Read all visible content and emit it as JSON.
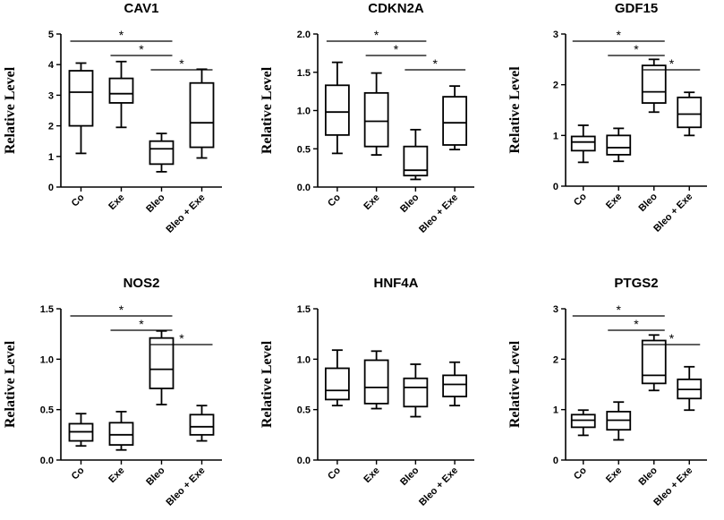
{
  "chart_data": [
    {
      "type": "box",
      "title": "CAV1",
      "ylabel": "Relative Level",
      "ylim": [
        0,
        5
      ],
      "yticks": [
        "0",
        "1",
        "2",
        "3",
        "4",
        "5"
      ],
      "categories": [
        "Co",
        "Exe",
        "Bleo",
        "Bleo + Exe"
      ],
      "boxes": [
        {
          "min": 1.1,
          "q1": 2.0,
          "median": 3.1,
          "q3": 3.8,
          "max": 4.05
        },
        {
          "min": 1.95,
          "q1": 2.75,
          "median": 3.05,
          "q3": 3.55,
          "max": 4.1
        },
        {
          "min": 0.5,
          "q1": 0.75,
          "median": 1.25,
          "q3": 1.5,
          "max": 1.75
        },
        {
          "min": 0.95,
          "q1": 1.3,
          "median": 2.1,
          "q3": 3.4,
          "max": 3.85
        }
      ],
      "significance": [
        {
          "from": 0,
          "to": 2,
          "label": "*"
        },
        {
          "from": 1,
          "to": 2,
          "label": "*"
        },
        {
          "from": 2,
          "to": 3,
          "label": "*"
        }
      ]
    },
    {
      "type": "box",
      "title": "CDKN2A",
      "ylabel": "Relative Level",
      "ylim": [
        0,
        2
      ],
      "yticks": [
        "0.0",
        "0.5",
        "1.0",
        "1.5",
        "2.0"
      ],
      "categories": [
        "Co",
        "Exe",
        "Bleo",
        "Bleo + Exe"
      ],
      "boxes": [
        {
          "min": 0.44,
          "q1": 0.68,
          "median": 0.98,
          "q3": 1.33,
          "max": 1.63
        },
        {
          "min": 0.42,
          "q1": 0.53,
          "median": 0.86,
          "q3": 1.23,
          "max": 1.49
        },
        {
          "min": 0.1,
          "q1": 0.15,
          "median": 0.22,
          "q3": 0.53,
          "max": 0.75
        },
        {
          "min": 0.49,
          "q1": 0.55,
          "median": 0.84,
          "q3": 1.18,
          "max": 1.32
        }
      ],
      "significance": [
        {
          "from": 0,
          "to": 2,
          "label": "*"
        },
        {
          "from": 1,
          "to": 2,
          "label": "*"
        },
        {
          "from": 2,
          "to": 3,
          "label": "*"
        }
      ]
    },
    {
      "type": "box",
      "title": "GDF15",
      "ylabel": "Relative Level",
      "ylim": [
        0,
        3
      ],
      "yticks": [
        "0",
        "1",
        "2",
        "3"
      ],
      "categories": [
        "Co",
        "Exe",
        "Bleo",
        "Bleo + Exe"
      ],
      "boxes": [
        {
          "min": 0.47,
          "q1": 0.7,
          "median": 0.87,
          "q3": 0.98,
          "max": 1.2
        },
        {
          "min": 0.49,
          "q1": 0.62,
          "median": 0.76,
          "q3": 1.0,
          "max": 1.14
        },
        {
          "min": 1.46,
          "q1": 1.64,
          "median": 1.86,
          "q3": 2.38,
          "max": 2.5
        },
        {
          "min": 1.0,
          "q1": 1.16,
          "median": 1.42,
          "q3": 1.75,
          "max": 1.85
        }
      ],
      "significance": [
        {
          "from": 0,
          "to": 2,
          "label": "*"
        },
        {
          "from": 1,
          "to": 2,
          "label": "*"
        },
        {
          "from": 2,
          "to": 3,
          "label": "*"
        }
      ]
    },
    {
      "type": "box",
      "title": "NOS2",
      "ylabel": "Relative Level",
      "ylim": [
        0,
        1.5
      ],
      "yticks": [
        "0.0",
        "0.5",
        "1.0",
        "1.5"
      ],
      "categories": [
        "Co",
        "Exe",
        "Bleo",
        "Bleo + Exe"
      ],
      "boxes": [
        {
          "min": 0.14,
          "q1": 0.19,
          "median": 0.28,
          "q3": 0.36,
          "max": 0.46
        },
        {
          "min": 0.1,
          "q1": 0.15,
          "median": 0.25,
          "q3": 0.37,
          "max": 0.48
        },
        {
          "min": 0.55,
          "q1": 0.71,
          "median": 0.9,
          "q3": 1.21,
          "max": 1.28
        },
        {
          "min": 0.19,
          "q1": 0.25,
          "median": 0.33,
          "q3": 0.45,
          "max": 0.54
        }
      ],
      "significance": [
        {
          "from": 0,
          "to": 2,
          "label": "*"
        },
        {
          "from": 1,
          "to": 2,
          "label": "*"
        },
        {
          "from": 2,
          "to": 3,
          "label": "*"
        }
      ]
    },
    {
      "type": "box",
      "title": "HNF4A",
      "ylabel": "Relative Level",
      "ylim": [
        0,
        1.5
      ],
      "yticks": [
        "0.0",
        "0.5",
        "1.0",
        "1.5"
      ],
      "categories": [
        "Co",
        "Exe",
        "Bleo",
        "Bleo + Exe"
      ],
      "boxes": [
        {
          "min": 0.54,
          "q1": 0.6,
          "median": 0.69,
          "q3": 0.91,
          "max": 1.09
        },
        {
          "min": 0.51,
          "q1": 0.56,
          "median": 0.72,
          "q3": 0.99,
          "max": 1.08
        },
        {
          "min": 0.43,
          "q1": 0.53,
          "median": 0.72,
          "q3": 0.81,
          "max": 0.95
        },
        {
          "min": 0.54,
          "q1": 0.63,
          "median": 0.75,
          "q3": 0.84,
          "max": 0.97
        }
      ],
      "significance": []
    },
    {
      "type": "box",
      "title": "PTGS2",
      "ylabel": "Relative Level",
      "ylim": [
        0,
        3
      ],
      "yticks": [
        "0",
        "1",
        "2",
        "3"
      ],
      "categories": [
        "Co",
        "Exe",
        "Bleo",
        "Bleo + Exe"
      ],
      "boxes": [
        {
          "min": 0.49,
          "q1": 0.65,
          "median": 0.79,
          "q3": 0.9,
          "max": 0.99
        },
        {
          "min": 0.4,
          "q1": 0.6,
          "median": 0.79,
          "q3": 0.96,
          "max": 1.15
        },
        {
          "min": 1.38,
          "q1": 1.52,
          "median": 1.68,
          "q3": 2.37,
          "max": 2.48
        },
        {
          "min": 0.99,
          "q1": 1.22,
          "median": 1.4,
          "q3": 1.6,
          "max": 1.85
        }
      ],
      "significance": [
        {
          "from": 0,
          "to": 2,
          "label": "*"
        },
        {
          "from": 1,
          "to": 2,
          "label": "*"
        },
        {
          "from": 2,
          "to": 3,
          "label": "*"
        }
      ]
    }
  ]
}
